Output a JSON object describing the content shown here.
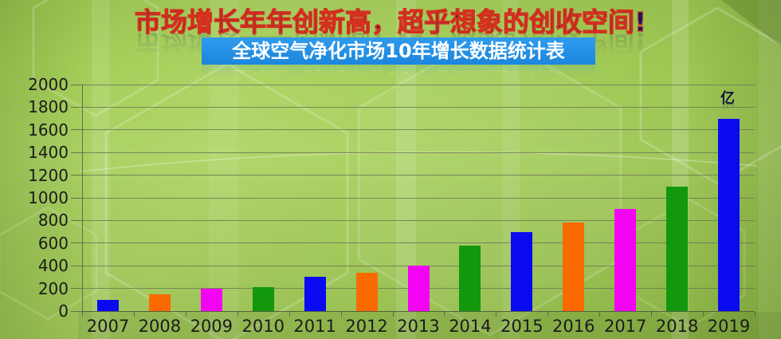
{
  "slide": {
    "title": "市场增长年年创新高，超乎想象的创收空间!",
    "banner": "全球空气净化市场10年增长数据统计表"
  },
  "chart_data": {
    "type": "bar",
    "title": "全球空气净化市场10年增长数据统计表",
    "unit_label": "亿",
    "categories": [
      "2007",
      "2008",
      "2009",
      "2010",
      "2011",
      "2012",
      "2013",
      "2014",
      "2015",
      "2016",
      "2017",
      "2018",
      "2019"
    ],
    "values": [
      100,
      150,
      200,
      210,
      300,
      340,
      400,
      580,
      700,
      780,
      900,
      1100,
      1700
    ],
    "bar_colors": [
      "#0a0af0",
      "#fb6903",
      "#f203f2",
      "#12970d",
      "#0a0af0",
      "#fb6903",
      "#f203f2",
      "#12970d",
      "#0a0af0",
      "#fb6903",
      "#f203f2",
      "#12970d",
      "#0a0af0"
    ],
    "ylim": [
      0,
      2000
    ],
    "yticks": [
      0,
      200,
      400,
      600,
      800,
      1000,
      1200,
      1400,
      1600,
      1800,
      2000
    ],
    "xlabel": "",
    "ylabel": "",
    "grid": true,
    "legend": "none"
  },
  "colors": {
    "banner_bg": "#1f8fe6",
    "banner_text": "#ffffff",
    "title_fill": "#16165f",
    "title_outline": "#d3301f",
    "axis_text": "#1b1b1b",
    "gridline": "#78855c",
    "bar_blue": "#0a0af0",
    "bar_orange": "#fb6903",
    "bar_magenta": "#f203f2",
    "bar_green": "#12970d"
  }
}
